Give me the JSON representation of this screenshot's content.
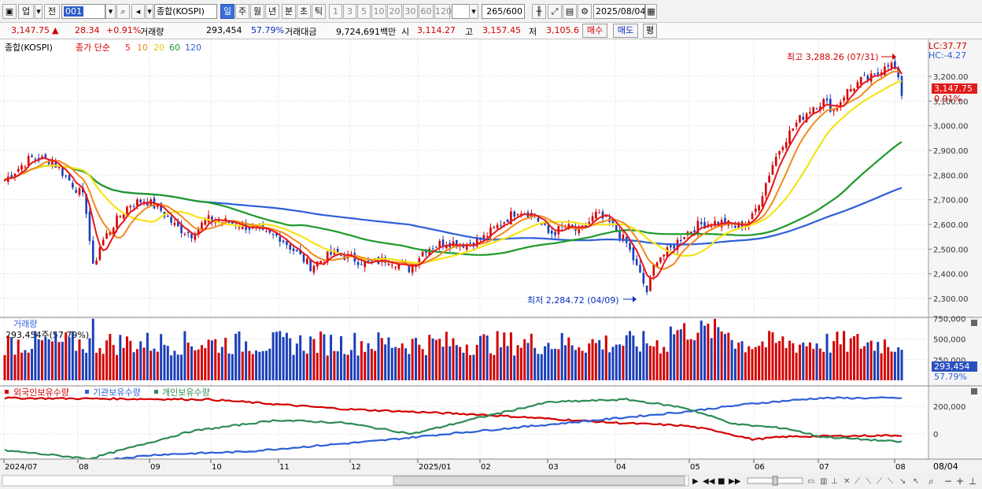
{
  "toolbar": {
    "up_label": "업",
    "prev_label": "전",
    "code_value": "001",
    "index_name": "종합(KOSPI)",
    "periods": [
      "일",
      "주",
      "월",
      "년",
      "분",
      "초",
      "틱"
    ],
    "active_period": "일",
    "multiples": [
      "1",
      "3",
      "5",
      "10",
      "20",
      "30",
      "60",
      "120"
    ],
    "count_value": "265/600",
    "date_value": "2025/08/04"
  },
  "info": {
    "price": "3,147.75",
    "change": "28.34",
    "change_pct": "+0.91%",
    "volume_label": "거래량",
    "volume": "293,454",
    "volume_ratio": "57.79%",
    "amount_label": "거래대금",
    "amount": "9,724,691백만",
    "open_label": "시",
    "open": "3,114.27",
    "high_label": "고",
    "high": "3,157.45",
    "low_label": "저",
    "low": "3,105.6",
    "buy_label": "매수",
    "sell_label": "매도",
    "eval_label": "평"
  },
  "price_panel": {
    "title": "종합(KOSPI)",
    "ma_title": "종가 단순",
    "ma_periods": [
      {
        "period": "5",
        "color": "#e8161b"
      },
      {
        "period": "10",
        "color": "#f08a1c"
      },
      {
        "period": "20",
        "color": "#f5e418"
      },
      {
        "period": "60",
        "color": "#1e9a2a"
      },
      {
        "period": "120",
        "color": "#2e5fd8"
      }
    ],
    "max_annotation": "최고 3,288.26 (07/31)",
    "min_annotation": "최저 2,284.72 (04/09)",
    "lc_label": "LC:37.77",
    "hc_label": "HC:-4.27",
    "current_price": "3,147.75",
    "current_pct": "0.91%",
    "y_ticks": [
      "3,200.00",
      "3,100.00",
      "3,000.00",
      "2,900.00",
      "2,800.00",
      "2,700.00",
      "2,600.00",
      "2,500.00",
      "2,400.00",
      "2,300.00"
    ]
  },
  "volume_panel": {
    "title": "거래량",
    "subtitle": "293,454주(57.79%)",
    "y_ticks": [
      "750,000",
      "500,000",
      "250,000"
    ],
    "current_value": "293,454",
    "current_pct": "57.79%"
  },
  "holdings_panel": {
    "series": [
      {
        "name": "외국인보유수량",
        "color": "#d40000"
      },
      {
        "name": "기관보유수량",
        "color": "#2e5fd8"
      },
      {
        "name": "개인보유수량",
        "color": "#2e8b57"
      }
    ],
    "y_ticks": [
      "200,000",
      "0"
    ]
  },
  "x_axis": {
    "labels": [
      "2024/07",
      "08",
      "09",
      "10",
      "11",
      "12",
      "2025/01",
      "02",
      "03",
      "04",
      "05",
      "06",
      "07",
      "08"
    ],
    "current_date": "08/04"
  },
  "colors": {
    "up": "#d40000",
    "down": "#1a3fb8",
    "grid": "#d8d8d8",
    "axis_bg": "#f5f5f5"
  }
}
